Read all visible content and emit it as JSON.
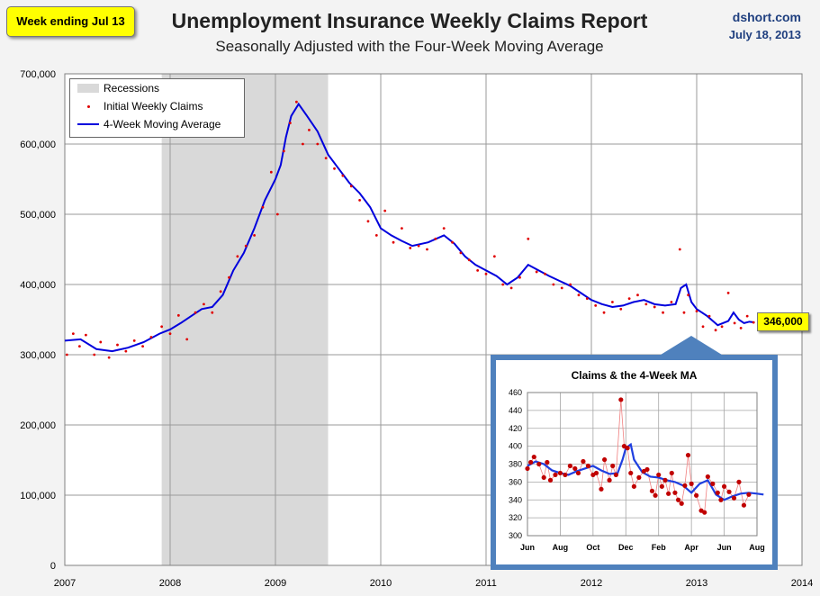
{
  "header": {
    "badge": "Week ending Jul 13",
    "title": "Unemployment Insurance Weekly Claims Report",
    "subtitle": "Seasonally Adjusted with the Four-Week Moving Average",
    "source": "dshort.com",
    "source_date": "July 18, 2013"
  },
  "legend": {
    "recessions": "Recessions",
    "claims": "Initial Weekly Claims",
    "ma": "4-Week Moving Average"
  },
  "latest_label": "346,000",
  "colors": {
    "ma_line": "#0000dd",
    "claims_dot": "#e00000",
    "recession": "#d9d9d9",
    "badge": "#ffff00",
    "inset_border": "#4f81bd",
    "inset_dot": "#c00000",
    "inset_line": "#1f3fe0"
  },
  "chart_data": [
    {
      "type": "line",
      "title": "Unemployment Insurance Weekly Claims Report",
      "x_ticks": [
        "2007",
        "2008",
        "2009",
        "2010",
        "2011",
        "2012",
        "2013",
        "2014"
      ],
      "y_ticks": [
        "0",
        "100,000",
        "200,000",
        "300,000",
        "400,000",
        "500,000",
        "600,000",
        "700,000"
      ],
      "ylim": [
        0,
        700000
      ],
      "xlim": [
        2007,
        2014
      ],
      "grid": true,
      "legend_position": "top-left",
      "recession": {
        "start": 2007.92,
        "end": 2009.5
      },
      "series": [
        {
          "name": "4-Week Moving Average",
          "points": [
            [
              2007.0,
              320000
            ],
            [
              2007.15,
              322000
            ],
            [
              2007.3,
              308000
            ],
            [
              2007.45,
              305000
            ],
            [
              2007.6,
              310000
            ],
            [
              2007.75,
              318000
            ],
            [
              2007.9,
              330000
            ],
            [
              2008.0,
              336000
            ],
            [
              2008.1,
              345000
            ],
            [
              2008.2,
              355000
            ],
            [
              2008.3,
              365000
            ],
            [
              2008.4,
              368000
            ],
            [
              2008.5,
              385000
            ],
            [
              2008.6,
              420000
            ],
            [
              2008.7,
              445000
            ],
            [
              2008.8,
              480000
            ],
            [
              2008.9,
              520000
            ],
            [
              2009.0,
              550000
            ],
            [
              2009.05,
              570000
            ],
            [
              2009.1,
              610000
            ],
            [
              2009.15,
              640000
            ],
            [
              2009.22,
              657000
            ],
            [
              2009.3,
              640000
            ],
            [
              2009.4,
              618000
            ],
            [
              2009.5,
              585000
            ],
            [
              2009.6,
              565000
            ],
            [
              2009.7,
              545000
            ],
            [
              2009.8,
              530000
            ],
            [
              2009.9,
              510000
            ],
            [
              2010.0,
              480000
            ],
            [
              2010.1,
              470000
            ],
            [
              2010.2,
              462000
            ],
            [
              2010.3,
              455000
            ],
            [
              2010.45,
              460000
            ],
            [
              2010.6,
              470000
            ],
            [
              2010.7,
              458000
            ],
            [
              2010.8,
              440000
            ],
            [
              2010.9,
              428000
            ],
            [
              2011.0,
              420000
            ],
            [
              2011.1,
              412000
            ],
            [
              2011.2,
              400000
            ],
            [
              2011.3,
              410000
            ],
            [
              2011.4,
              428000
            ],
            [
              2011.5,
              420000
            ],
            [
              2011.6,
              412000
            ],
            [
              2011.7,
              405000
            ],
            [
              2011.8,
              398000
            ],
            [
              2011.9,
              388000
            ],
            [
              2012.0,
              378000
            ],
            [
              2012.1,
              372000
            ],
            [
              2012.2,
              368000
            ],
            [
              2012.3,
              370000
            ],
            [
              2012.4,
              375000
            ],
            [
              2012.5,
              378000
            ],
            [
              2012.6,
              372000
            ],
            [
              2012.7,
              370000
            ],
            [
              2012.8,
              372000
            ],
            [
              2012.85,
              395000
            ],
            [
              2012.9,
              400000
            ],
            [
              2012.95,
              375000
            ],
            [
              2013.0,
              365000
            ],
            [
              2013.1,
              355000
            ],
            [
              2013.2,
              342000
            ],
            [
              2013.3,
              348000
            ],
            [
              2013.35,
              360000
            ],
            [
              2013.4,
              350000
            ],
            [
              2013.45,
              345000
            ],
            [
              2013.5,
              347000
            ],
            [
              2013.55,
              346000
            ]
          ]
        },
        {
          "name": "Initial Weekly Claims",
          "points": [
            [
              2007.02,
              300000
            ],
            [
              2007.08,
              330000
            ],
            [
              2007.14,
              312000
            ],
            [
              2007.2,
              328000
            ],
            [
              2007.28,
              300000
            ],
            [
              2007.34,
              318000
            ],
            [
              2007.42,
              296000
            ],
            [
              2007.5,
              314000
            ],
            [
              2007.58,
              305000
            ],
            [
              2007.66,
              320000
            ],
            [
              2007.74,
              312000
            ],
            [
              2007.82,
              325000
            ],
            [
              2007.92,
              340000
            ],
            [
              2008.0,
              330000
            ],
            [
              2008.08,
              356000
            ],
            [
              2008.16,
              322000
            ],
            [
              2008.24,
              360000
            ],
            [
              2008.32,
              372000
            ],
            [
              2008.4,
              360000
            ],
            [
              2008.48,
              390000
            ],
            [
              2008.56,
              410000
            ],
            [
              2008.64,
              440000
            ],
            [
              2008.72,
              455000
            ],
            [
              2008.8,
              470000
            ],
            [
              2008.88,
              510000
            ],
            [
              2008.96,
              560000
            ],
            [
              2009.02,
              500000
            ],
            [
              2009.08,
              590000
            ],
            [
              2009.14,
              630000
            ],
            [
              2009.2,
              660000
            ],
            [
              2009.26,
              600000
            ],
            [
              2009.32,
              620000
            ],
            [
              2009.4,
              600000
            ],
            [
              2009.48,
              580000
            ],
            [
              2009.56,
              565000
            ],
            [
              2009.64,
              555000
            ],
            [
              2009.72,
              540000
            ],
            [
              2009.8,
              520000
            ],
            [
              2009.88,
              490000
            ],
            [
              2009.96,
              470000
            ],
            [
              2010.04,
              505000
            ],
            [
              2010.12,
              460000
            ],
            [
              2010.2,
              480000
            ],
            [
              2010.28,
              452000
            ],
            [
              2010.36,
              455000
            ],
            [
              2010.44,
              450000
            ],
            [
              2010.52,
              465000
            ],
            [
              2010.6,
              480000
            ],
            [
              2010.68,
              460000
            ],
            [
              2010.76,
              445000
            ],
            [
              2010.84,
              435000
            ],
            [
              2010.92,
              420000
            ],
            [
              2011.0,
              415000
            ],
            [
              2011.08,
              440000
            ],
            [
              2011.16,
              400000
            ],
            [
              2011.24,
              395000
            ],
            [
              2011.32,
              410000
            ],
            [
              2011.4,
              465000
            ],
            [
              2011.48,
              418000
            ],
            [
              2011.56,
              415000
            ],
            [
              2011.64,
              400000
            ],
            [
              2011.72,
              395000
            ],
            [
              2011.8,
              400000
            ],
            [
              2011.88,
              385000
            ],
            [
              2011.96,
              380000
            ],
            [
              2012.04,
              370000
            ],
            [
              2012.12,
              360000
            ],
            [
              2012.2,
              375000
            ],
            [
              2012.28,
              365000
            ],
            [
              2012.36,
              380000
            ],
            [
              2012.44,
              385000
            ],
            [
              2012.52,
              372000
            ],
            [
              2012.6,
              368000
            ],
            [
              2012.68,
              360000
            ],
            [
              2012.76,
              375000
            ],
            [
              2012.84,
              450000
            ],
            [
              2012.88,
              360000
            ],
            [
              2012.92,
              385000
            ],
            [
              2013.0,
              362000
            ],
            [
              2013.06,
              340000
            ],
            [
              2013.12,
              355000
            ],
            [
              2013.18,
              335000
            ],
            [
              2013.24,
              340000
            ],
            [
              2013.3,
              388000
            ],
            [
              2013.36,
              345000
            ],
            [
              2013.42,
              338000
            ],
            [
              2013.48,
              355000
            ],
            [
              2013.54,
              346000
            ]
          ]
        }
      ],
      "annotation": "346,000"
    },
    {
      "type": "line",
      "title": "Claims & the 4-Week MA",
      "x_ticks": [
        "Jun",
        "Aug",
        "Oct",
        "Dec",
        "Feb",
        "Apr",
        "Jun",
        "Aug"
      ],
      "y_ticks": [
        "300",
        "320",
        "340",
        "360",
        "380",
        "400",
        "420",
        "440",
        "460"
      ],
      "ylim": [
        300,
        460
      ],
      "grid": true,
      "series": [
        {
          "name": "4-Week Moving Average",
          "points": [
            [
              0.0,
              378
            ],
            [
              0.25,
              383
            ],
            [
              0.5,
              380
            ],
            [
              0.75,
              373
            ],
            [
              1.0,
              370
            ],
            [
              1.25,
              368
            ],
            [
              1.5,
              372
            ],
            [
              1.75,
              375
            ],
            [
              2.0,
              378
            ],
            [
              2.25,
              373
            ],
            [
              2.5,
              369
            ],
            [
              2.75,
              370
            ],
            [
              2.9,
              385
            ],
            [
              3.0,
              398
            ],
            [
              3.15,
              402
            ],
            [
              3.25,
              385
            ],
            [
              3.5,
              371
            ],
            [
              3.75,
              366
            ],
            [
              4.0,
              365
            ],
            [
              4.25,
              362
            ],
            [
              4.5,
              360
            ],
            [
              4.75,
              356
            ],
            [
              5.0,
              348
            ],
            [
              5.25,
              358
            ],
            [
              5.5,
              362
            ],
            [
              5.75,
              346
            ],
            [
              6.0,
              340
            ],
            [
              6.25,
              344
            ],
            [
              6.5,
              347
            ],
            [
              6.75,
              348
            ],
            [
              7.0,
              347
            ],
            [
              7.2,
              346
            ]
          ]
        },
        {
          "name": "Initial Weekly Claims",
          "points": [
            [
              0.0,
              375
            ],
            [
              0.1,
              382
            ],
            [
              0.2,
              388
            ],
            [
              0.35,
              380
            ],
            [
              0.5,
              365
            ],
            [
              0.6,
              382
            ],
            [
              0.7,
              362
            ],
            [
              0.85,
              368
            ],
            [
              1.0,
              370
            ],
            [
              1.15,
              368
            ],
            [
              1.3,
              378
            ],
            [
              1.45,
              375
            ],
            [
              1.55,
              370
            ],
            [
              1.7,
              383
            ],
            [
              1.85,
              378
            ],
            [
              2.0,
              368
            ],
            [
              2.1,
              370
            ],
            [
              2.25,
              352
            ],
            [
              2.35,
              385
            ],
            [
              2.5,
              362
            ],
            [
              2.6,
              378
            ],
            [
              2.7,
              368
            ],
            [
              2.85,
              452
            ],
            [
              2.95,
              400
            ],
            [
              3.05,
              398
            ],
            [
              3.15,
              370
            ],
            [
              3.25,
              355
            ],
            [
              3.4,
              365
            ],
            [
              3.55,
              372
            ],
            [
              3.65,
              374
            ],
            [
              3.8,
              350
            ],
            [
              3.9,
              345
            ],
            [
              4.0,
              368
            ],
            [
              4.1,
              355
            ],
            [
              4.2,
              362
            ],
            [
              4.3,
              347
            ],
            [
              4.4,
              370
            ],
            [
              4.5,
              348
            ],
            [
              4.6,
              340
            ],
            [
              4.7,
              336
            ],
            [
              4.8,
              356
            ],
            [
              4.9,
              390
            ],
            [
              5.0,
              358
            ],
            [
              5.15,
              345
            ],
            [
              5.3,
              328
            ],
            [
              5.4,
              326
            ],
            [
              5.5,
              366
            ],
            [
              5.65,
              358
            ],
            [
              5.8,
              348
            ],
            [
              5.9,
              340
            ],
            [
              6.0,
              355
            ],
            [
              6.15,
              349
            ],
            [
              6.3,
              342
            ],
            [
              6.45,
              360
            ],
            [
              6.6,
              334
            ],
            [
              6.75,
              346
            ]
          ]
        }
      ]
    }
  ]
}
